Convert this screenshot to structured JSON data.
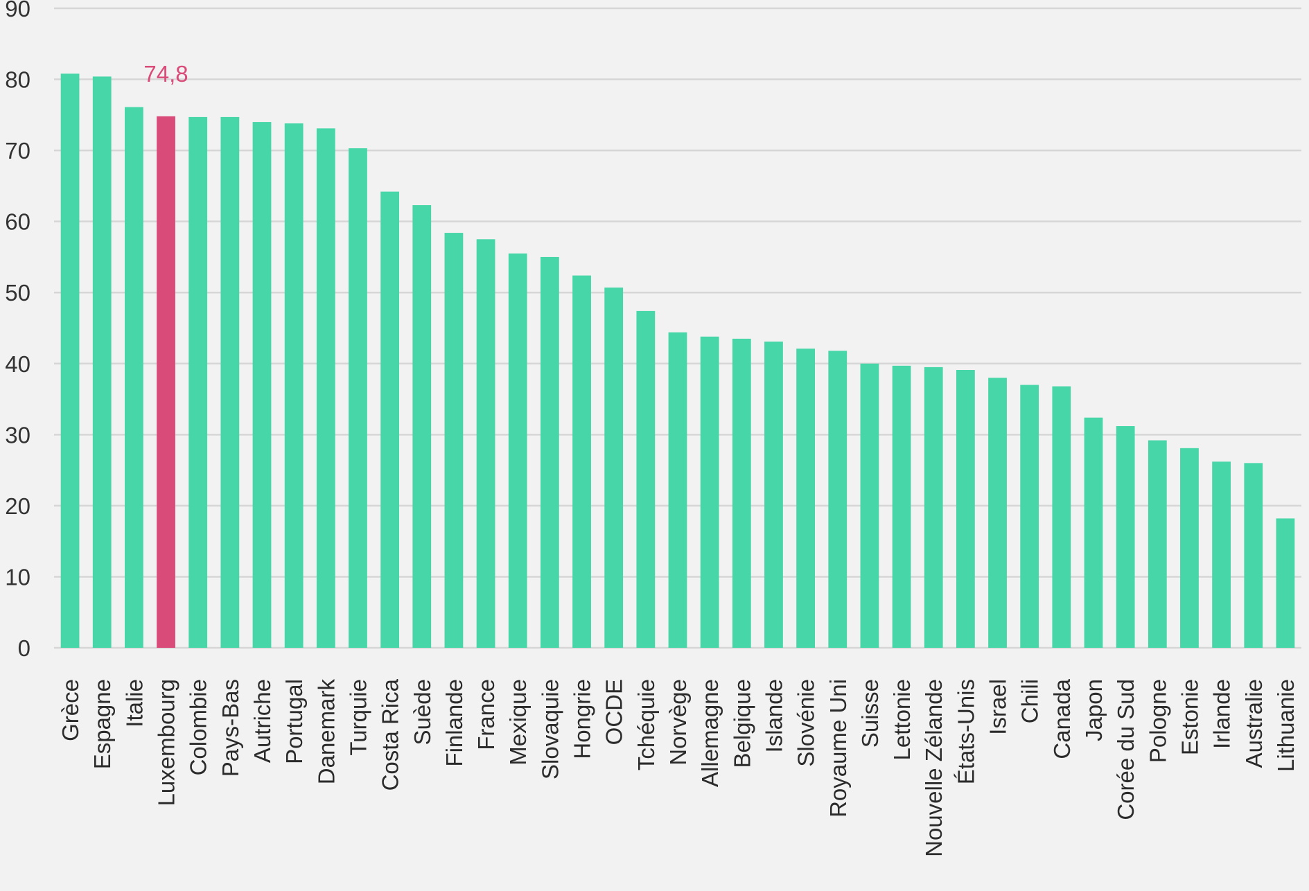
{
  "chart_data": {
    "type": "bar",
    "categories": [
      "Grèce",
      "Espagne",
      "Italie",
      "Luxembourg",
      "Colombie",
      "Pays-Bas",
      "Autriche",
      "Portugal",
      "Danemark",
      "Turquie",
      "Costa Rica",
      "Suède",
      "Finlande",
      "France",
      "Mexique",
      "Slovaquie",
      "Hongrie",
      "OCDE",
      "Tchéquie",
      "Norvège",
      "Allemagne",
      "Belgique",
      "Islande",
      "Slovénie",
      "Royaume Uni",
      "Suisse",
      "Lettonie",
      "Nouvelle Zélande",
      "États-Unis",
      "Israel",
      "Chili",
      "Canada",
      "Japon",
      "Corée du Sud",
      "Pologne",
      "Estonie",
      "Irlande",
      "Australie",
      "Lithuanie"
    ],
    "values": [
      80.8,
      80.4,
      76.1,
      74.8,
      74.7,
      74.7,
      74.0,
      73.8,
      73.1,
      70.3,
      64.2,
      62.3,
      58.4,
      57.5,
      55.5,
      55.0,
      52.4,
      50.7,
      47.4,
      44.4,
      43.8,
      43.5,
      43.1,
      42.1,
      41.8,
      40.0,
      39.7,
      39.5,
      39.1,
      38.0,
      37.0,
      36.8,
      32.4,
      31.2,
      29.2,
      28.1,
      26.2,
      26.0,
      18.2
    ],
    "highlight": {
      "category": "Luxembourg",
      "label": "74,8",
      "color": "#d94b78"
    },
    "bar_color": "#46d6a7",
    "title": "",
    "xlabel": "",
    "ylabel": "",
    "ylim": [
      0,
      90
    ],
    "yticks": [
      "0",
      "10",
      "20",
      "30",
      "40",
      "50",
      "60",
      "70",
      "80",
      "90"
    ],
    "grid": true,
    "legend": "none"
  }
}
